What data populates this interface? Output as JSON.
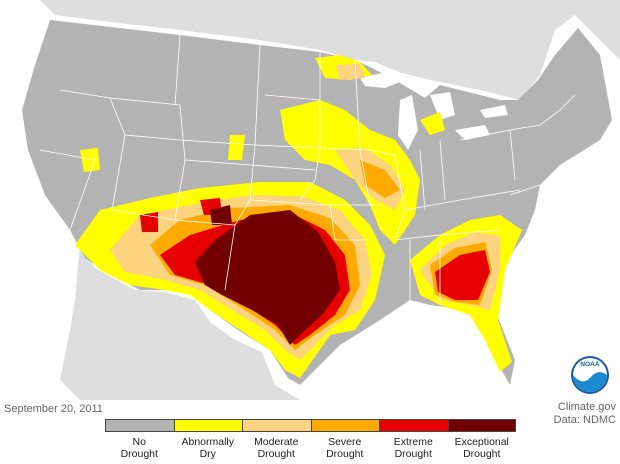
{
  "date": "September 20, 2011",
  "credit_line1": "Climate.gov",
  "credit_line2": "Data: NDMC",
  "logo_text": "NOAA",
  "colors": {
    "ocean": "#ffffff",
    "neighbor_land": "#dedede",
    "state_lines": "#ffffff",
    "no_drought": "#b3b3b3",
    "abnormally_dry": "#ffff00",
    "moderate": "#fcd37f",
    "severe": "#ffaa00",
    "extreme": "#e60000",
    "exceptional": "#730000"
  },
  "legend": [
    {
      "label": "No\nDrought",
      "color": "#b3b3b3"
    },
    {
      "label": "Abnormally\nDry",
      "color": "#ffff00"
    },
    {
      "label": "Moderate\nDrought",
      "color": "#fcd37f"
    },
    {
      "label": "Severe\nDrought",
      "color": "#ffaa00"
    },
    {
      "label": "Extreme\nDrought",
      "color": "#e60000"
    },
    {
      "label": "Exceptional\nDrought",
      "color": "#730000"
    }
  ]
}
